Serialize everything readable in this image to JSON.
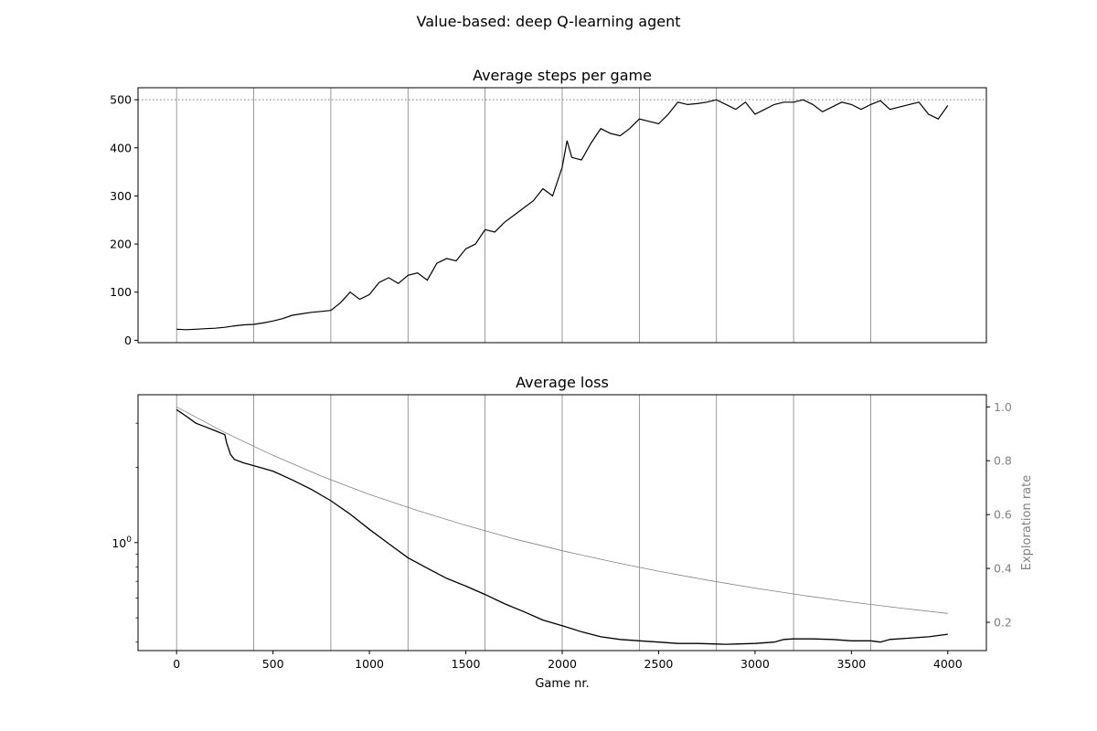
{
  "figure": {
    "suptitle": "Value-based: deep Q-learning agent"
  },
  "colors": {
    "series_line": "#000000",
    "exploration_line": "#808080",
    "vertical_gridlines": "#808080",
    "reference_line": "#808080",
    "secondary_axis_text": "#808080"
  },
  "chart_data": [
    {
      "type": "line",
      "title": "Average steps per game",
      "xlabel": "",
      "ylabel": "",
      "xlim": [
        -200,
        4200
      ],
      "ylim": [
        -5,
        525
      ],
      "yticks": [
        0,
        100,
        200,
        300,
        400,
        500
      ],
      "xticks_labels_shown": false,
      "vertical_gridlines_x": [
        0,
        400,
        800,
        1200,
        1600,
        2000,
        2400,
        2800,
        3200,
        3600
      ],
      "reference_hline": {
        "y": 500,
        "style": "dotted"
      },
      "series": [
        {
          "x": [
            0,
            50,
            100,
            150,
            200,
            250,
            300,
            350,
            400,
            450,
            500,
            550,
            600,
            650,
            700,
            750,
            800,
            850,
            900,
            950,
            1000,
            1050,
            1100,
            1150,
            1200,
            1250,
            1300,
            1350,
            1400,
            1450,
            1500,
            1550,
            1600,
            1650,
            1700,
            1750,
            1800,
            1850,
            1900,
            1950,
            2000,
            2025,
            2050,
            2100,
            2150,
            2200,
            2250,
            2300,
            2350,
            2400,
            2450,
            2500,
            2550,
            2600,
            2650,
            2700,
            2750,
            2800,
            2850,
            2900,
            2950,
            3000,
            3050,
            3100,
            3150,
            3200,
            3250,
            3300,
            3350,
            3400,
            3450,
            3500,
            3550,
            3600,
            3650,
            3700,
            3750,
            3800,
            3850,
            3900,
            3950,
            4000
          ],
          "values": [
            23,
            22,
            23,
            24,
            25,
            27,
            30,
            32,
            33,
            36,
            40,
            45,
            52,
            55,
            58,
            60,
            62,
            78,
            100,
            85,
            95,
            120,
            130,
            118,
            135,
            140,
            125,
            160,
            170,
            165,
            190,
            200,
            230,
            225,
            245,
            260,
            275,
            290,
            315,
            300,
            360,
            415,
            380,
            375,
            410,
            440,
            430,
            425,
            440,
            460,
            455,
            450,
            470,
            495,
            490,
            492,
            495,
            500,
            490,
            480,
            495,
            470,
            480,
            490,
            495,
            495,
            500,
            490,
            475,
            485,
            495,
            490,
            480,
            490,
            498,
            480,
            485,
            490,
            495,
            470,
            460,
            488
          ]
        }
      ]
    },
    {
      "type": "line",
      "title": "Average loss",
      "xlabel": "Game nr.",
      "ylabel": "",
      "y_scale": "log",
      "xlim": [
        -200,
        4200
      ],
      "ylim": [
        0.37,
        3.9
      ],
      "xticks": [
        0,
        500,
        1000,
        1500,
        2000,
        2500,
        3000,
        3500,
        4000
      ],
      "ytick_major_label": "10^0",
      "vertical_gridlines_x": [
        0,
        400,
        800,
        1200,
        1600,
        2000,
        2400,
        2800,
        3200,
        3600
      ],
      "secondary_axis": {
        "label": "Exploration rate",
        "ylim": [
          0.095,
          1.045
        ],
        "yticks": [
          0.2,
          0.4,
          0.6,
          0.8,
          1.0
        ]
      },
      "series": [
        {
          "axis": "left",
          "x": [
            0,
            50,
            100,
            150,
            200,
            250,
            260,
            280,
            300,
            350,
            400,
            450,
            500,
            600,
            700,
            800,
            900,
            1000,
            1100,
            1200,
            1300,
            1400,
            1500,
            1600,
            1700,
            1800,
            1900,
            2000,
            2100,
            2200,
            2300,
            2400,
            2500,
            2600,
            2700,
            2800,
            2850,
            2900,
            3000,
            3100,
            3150,
            3200,
            3300,
            3400,
            3500,
            3600,
            3650,
            3700,
            3800,
            3900,
            4000
          ],
          "values": [
            3.4,
            3.2,
            3.0,
            2.9,
            2.8,
            2.7,
            2.5,
            2.25,
            2.15,
            2.08,
            2.03,
            1.98,
            1.93,
            1.78,
            1.63,
            1.47,
            1.3,
            1.13,
            0.99,
            0.87,
            0.79,
            0.72,
            0.67,
            0.62,
            0.57,
            0.53,
            0.49,
            0.465,
            0.44,
            0.42,
            0.41,
            0.405,
            0.4,
            0.395,
            0.395,
            0.393,
            0.392,
            0.393,
            0.395,
            0.4,
            0.41,
            0.412,
            0.412,
            0.41,
            0.405,
            0.405,
            0.4,
            0.41,
            0.415,
            0.42,
            0.43
          ]
        },
        {
          "axis": "right",
          "x": [
            0,
            250,
            500,
            750,
            1000,
            1250,
            1500,
            1750,
            2000,
            2250,
            2500,
            2750,
            3000,
            3250,
            3500,
            3750,
            4000
          ],
          "values": [
            1.0,
            0.905,
            0.82,
            0.743,
            0.675,
            0.615,
            0.56,
            0.51,
            0.466,
            0.426,
            0.39,
            0.357,
            0.327,
            0.3,
            0.275,
            0.253,
            0.233
          ]
        }
      ]
    }
  ]
}
